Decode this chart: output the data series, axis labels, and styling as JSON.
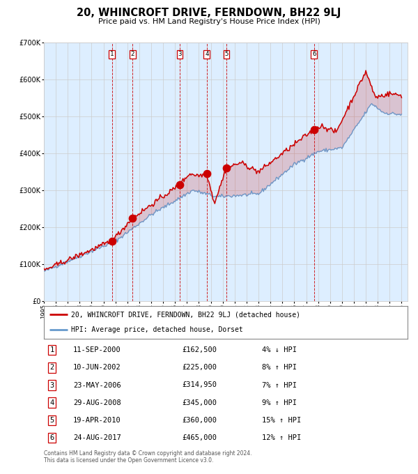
{
  "title": "20, WHINCROFT DRIVE, FERNDOWN, BH22 9LJ",
  "subtitle": "Price paid vs. HM Land Registry's House Price Index (HPI)",
  "footer": "Contains HM Land Registry data © Crown copyright and database right 2024.\nThis data is licensed under the Open Government Licence v3.0.",
  "legend_line1": "20, WHINCROFT DRIVE, FERNDOWN, BH22 9LJ (detached house)",
  "legend_line2": "HPI: Average price, detached house, Dorset",
  "sale_dates_num": [
    2000.7,
    2002.44,
    2006.39,
    2008.66,
    2010.3,
    2017.65
  ],
  "sale_prices": [
    162500,
    225000,
    314950,
    345000,
    360000,
    465000
  ],
  "sale_labels": [
    "1",
    "2",
    "3",
    "4",
    "5",
    "6"
  ],
  "table_rows": [
    [
      "1",
      "11-SEP-2000",
      "£162,500",
      "4% ↓ HPI"
    ],
    [
      "2",
      "10-JUN-2002",
      "£225,000",
      "8% ↑ HPI"
    ],
    [
      "3",
      "23-MAY-2006",
      "£314,950",
      "7% ↑ HPI"
    ],
    [
      "4",
      "29-AUG-2008",
      "£345,000",
      "9% ↑ HPI"
    ],
    [
      "5",
      "19-APR-2010",
      "£360,000",
      "15% ↑ HPI"
    ],
    [
      "6",
      "24-AUG-2017",
      "£465,000",
      "12% ↑ HPI"
    ]
  ],
  "red_color": "#cc0000",
  "blue_color": "#6699cc",
  "bg_color": "#ddeeff",
  "grid_color": "#cccccc",
  "ylim": [
    0,
    700000
  ],
  "xlim_start": 1995.0,
  "xlim_end": 2025.5,
  "yticks": [
    0,
    100000,
    200000,
    300000,
    400000,
    500000,
    600000,
    700000
  ],
  "ytick_labels": [
    "£0",
    "£100K",
    "£200K",
    "£300K",
    "£400K",
    "£500K",
    "£600K",
    "£700K"
  ],
  "xticks": [
    1995,
    1996,
    1997,
    1998,
    1999,
    2000,
    2001,
    2002,
    2003,
    2004,
    2005,
    2006,
    2007,
    2008,
    2009,
    2010,
    2011,
    2012,
    2013,
    2014,
    2015,
    2016,
    2017,
    2018,
    2019,
    2020,
    2021,
    2022,
    2023,
    2024,
    2025
  ]
}
